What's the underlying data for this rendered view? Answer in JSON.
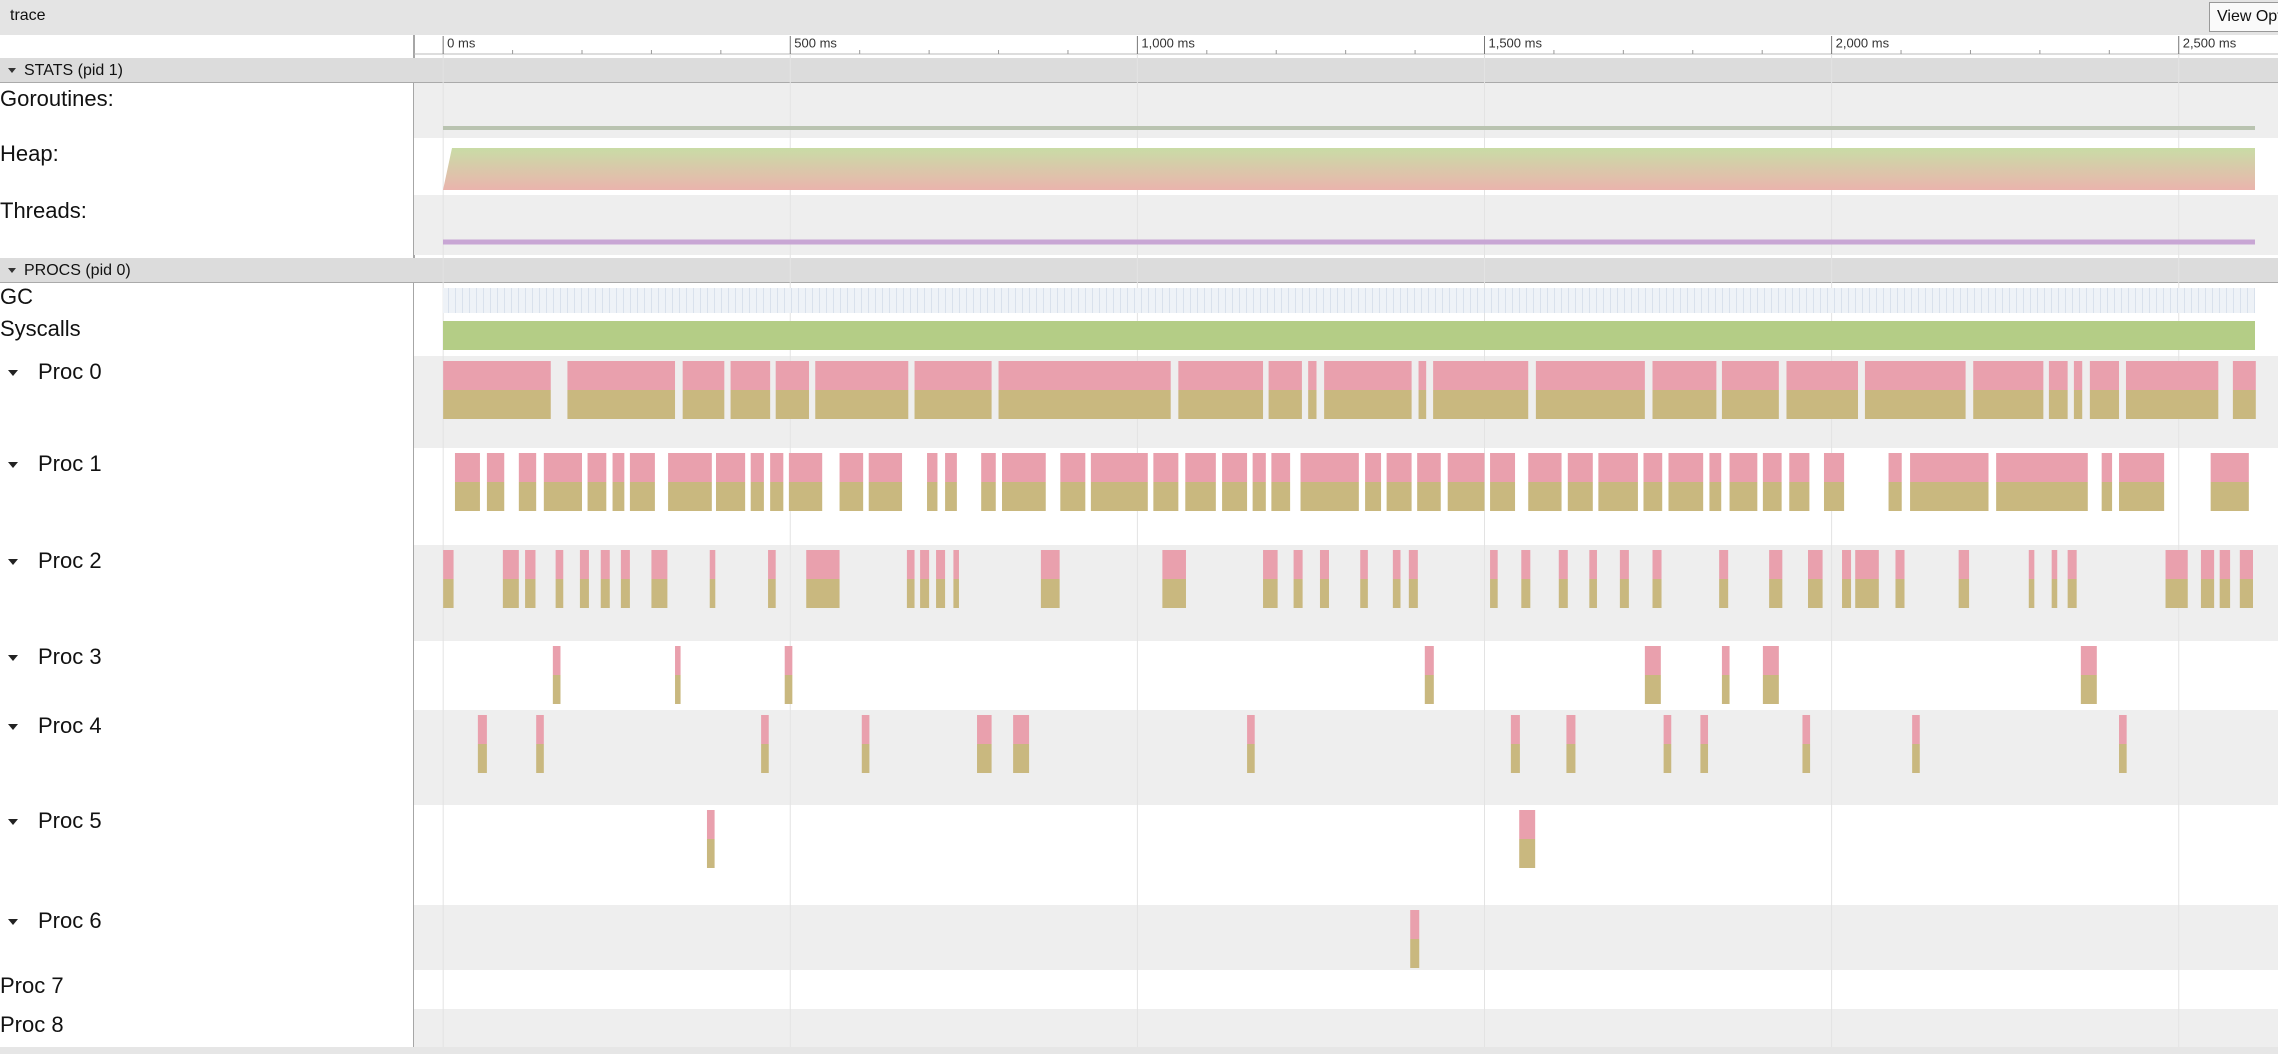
{
  "toolbar": {
    "title": "trace",
    "button": "View Options"
  },
  "chart_data": {
    "type": "timeline",
    "xlim": [
      -42,
      2643
    ],
    "xticks": [
      {
        "value": 0,
        "label": "0 ms"
      },
      {
        "value": 500,
        "label": "500 ms"
      },
      {
        "value": 1000,
        "label": "1,000 ms"
      },
      {
        "value": 1500,
        "label": "1,500 ms"
      },
      {
        "value": 2000,
        "label": "2,000 ms"
      },
      {
        "value": 2500,
        "label": "2,500 ms"
      }
    ],
    "sections": [
      {
        "title": "STATS (pid 1)",
        "rows": [
          "Goroutines:",
          "Heap:",
          "Threads:"
        ]
      },
      {
        "title": "PROCS (pid 0)",
        "rows": [
          "GC",
          "Syscalls"
        ]
      }
    ],
    "procs": [
      {
        "name": "Proc 0",
        "slices": [
          [
            0,
            155
          ],
          [
            179,
            155
          ],
          [
            345,
            60
          ],
          [
            414,
            57
          ],
          [
            479,
            48
          ],
          [
            536,
            134
          ],
          [
            679,
            111
          ],
          [
            800,
            248
          ],
          [
            1059,
            122
          ],
          [
            1189,
            48
          ],
          [
            1246,
            12
          ],
          [
            1269,
            126
          ],
          [
            1405,
            11
          ],
          [
            1426,
            137
          ],
          [
            1574,
            157
          ],
          [
            1742,
            92
          ],
          [
            1842,
            82
          ],
          [
            1935,
            103
          ],
          [
            2048,
            145
          ],
          [
            2204,
            101
          ],
          [
            2313,
            27
          ],
          [
            2349,
            12
          ],
          [
            2372,
            42
          ],
          [
            2424,
            133
          ],
          [
            2578,
            33
          ]
        ]
      },
      {
        "name": "Proc 1",
        "slices": [
          [
            17,
            36
          ],
          [
            63,
            25
          ],
          [
            109,
            25
          ],
          [
            145,
            55
          ],
          [
            208,
            27
          ],
          [
            244,
            17
          ],
          [
            269,
            36
          ],
          [
            324,
            63
          ],
          [
            393,
            42
          ],
          [
            443,
            19
          ],
          [
            471,
            19
          ],
          [
            498,
            48
          ],
          [
            571,
            34
          ],
          [
            613,
            48
          ],
          [
            697,
            15
          ],
          [
            723,
            17
          ],
          [
            775,
            21
          ],
          [
            805,
            63
          ],
          [
            889,
            36
          ],
          [
            933,
            82
          ],
          [
            1023,
            36
          ],
          [
            1069,
            44
          ],
          [
            1122,
            36
          ],
          [
            1166,
            19
          ],
          [
            1193,
            27
          ],
          [
            1235,
            84
          ],
          [
            1328,
            23
          ],
          [
            1359,
            36
          ],
          [
            1403,
            34
          ],
          [
            1447,
            53
          ],
          [
            1508,
            36
          ],
          [
            1563,
            48
          ],
          [
            1620,
            36
          ],
          [
            1664,
            57
          ],
          [
            1729,
            27
          ],
          [
            1765,
            50
          ],
          [
            1824,
            17
          ],
          [
            1853,
            40
          ],
          [
            1901,
            27
          ],
          [
            1939,
            29
          ],
          [
            1989,
            29
          ],
          [
            2082,
            19
          ],
          [
            2113,
            113
          ],
          [
            2237,
            132
          ],
          [
            2389,
            15
          ],
          [
            2414,
            65
          ],
          [
            2546,
            55
          ]
        ]
      },
      {
        "name": "Proc 2",
        "slices": [
          [
            0,
            15
          ],
          [
            86,
            23
          ],
          [
            118,
            15
          ],
          [
            162,
            11
          ],
          [
            197,
            13
          ],
          [
            227,
            13
          ],
          [
            256,
            13
          ],
          [
            300,
            23
          ],
          [
            384,
            8
          ],
          [
            468,
            11
          ],
          [
            523,
            48
          ],
          [
            668,
            11
          ],
          [
            687,
            13
          ],
          [
            710,
            13
          ],
          [
            735,
            8
          ],
          [
            861,
            27
          ],
          [
            1036,
            34
          ],
          [
            1181,
            21
          ],
          [
            1225,
            13
          ],
          [
            1263,
            13
          ],
          [
            1321,
            11
          ],
          [
            1368,
            11
          ],
          [
            1391,
            13
          ],
          [
            1508,
            11
          ],
          [
            1553,
            13
          ],
          [
            1607,
            13
          ],
          [
            1651,
            11
          ],
          [
            1695,
            13
          ],
          [
            1742,
            13
          ],
          [
            1838,
            13
          ],
          [
            1910,
            19
          ],
          [
            1966,
            21
          ],
          [
            2015,
            13
          ],
          [
            2034,
            34
          ],
          [
            2092,
            13
          ],
          [
            2183,
            15
          ],
          [
            2284,
            8
          ],
          [
            2317,
            8
          ],
          [
            2340,
            13
          ],
          [
            2481,
            32
          ],
          [
            2532,
            19
          ],
          [
            2559,
            15
          ],
          [
            2588,
            19
          ]
        ]
      },
      {
        "name": "Proc 3",
        "slices": [
          [
            158,
            11
          ],
          [
            334,
            8
          ],
          [
            492,
            11
          ],
          [
            1414,
            13
          ],
          [
            1731,
            23
          ],
          [
            1842,
            11
          ],
          [
            1901,
            23
          ],
          [
            2359,
            23
          ]
        ]
      },
      {
        "name": "Proc 4",
        "slices": [
          [
            50,
            13
          ],
          [
            134,
            11
          ],
          [
            458,
            11
          ],
          [
            603,
            11
          ],
          [
            769,
            21
          ],
          [
            821,
            23
          ],
          [
            1158,
            11
          ],
          [
            1538,
            13
          ],
          [
            1618,
            13
          ],
          [
            1758,
            11
          ],
          [
            1811,
            11
          ],
          [
            1958,
            11
          ],
          [
            2116,
            11
          ],
          [
            2414,
            11
          ]
        ]
      },
      {
        "name": "Proc 5",
        "slices": [
          [
            380,
            11
          ],
          [
            1550,
            23
          ]
        ]
      },
      {
        "name": "Proc 6",
        "slices": [
          [
            1393,
            13
          ]
        ]
      },
      {
        "name": "Proc 7"
      },
      {
        "name": "Proc 8"
      }
    ]
  }
}
